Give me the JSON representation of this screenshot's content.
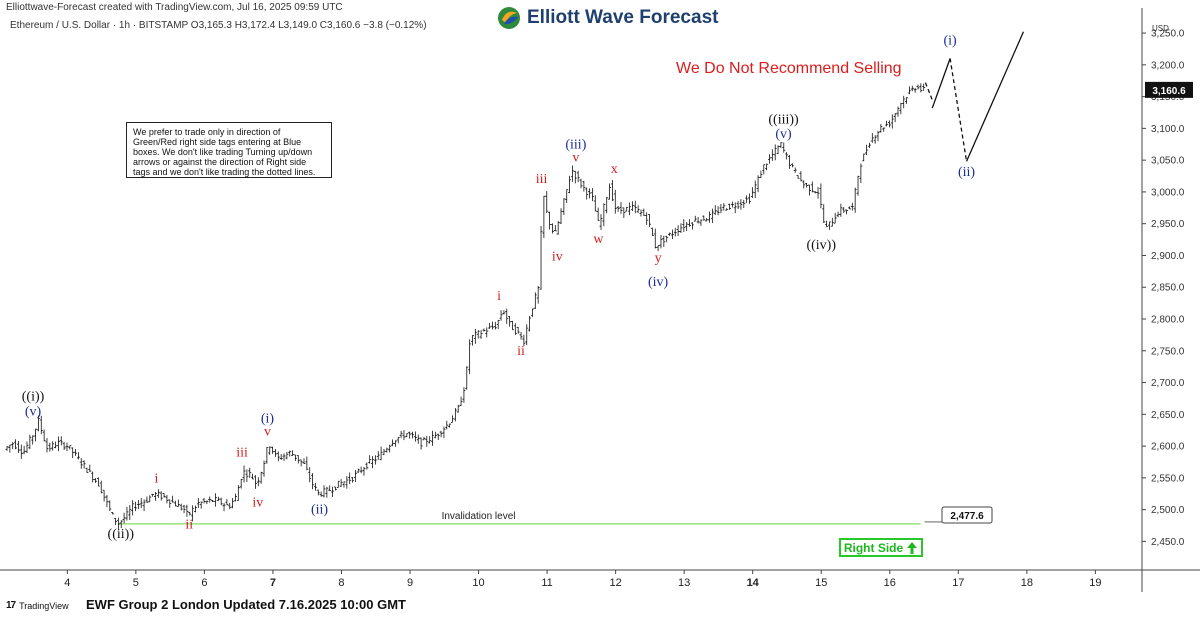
{
  "header": {
    "created_by": "Elliottwave-Forecast created with TradingView.com, Jul 16, 2025 09:59 UTC",
    "symbol_info": "Ethereum / U.S. Dollar · 1h · BITSTAMP  O3,165.3  H3,172.4  L3,149.0  C3,160.6  −3.8 (−0.12%)",
    "brand": "Elliott Wave Forecast",
    "currency": "USD"
  },
  "note": "We prefer to trade only in direction of Green/Red right side tags entering at Blue boxes. We don't like trading Turning up/down arrows or against the direction of Right side tags and we don't like trading the dotted lines.",
  "headline": "We Do Not Recommend Selling",
  "footer": {
    "tv_logo": "TradingView",
    "text": "EWF Group 2 London Updated 7.16.2025 10:00 GMT"
  },
  "right_side": "Right Side",
  "colors": {
    "candle": "#111111",
    "label_blue": "#1a2a9c",
    "label_red": "#d81e1e",
    "label_black": "#111111",
    "invalidation_line": "#9be07a",
    "right_side": "#28c828",
    "headline": "#d81e1e"
  },
  "chart_data": {
    "type": "candlestick",
    "title": "Ethereum / U.S. Dollar · 1h · BITSTAMP",
    "x_axis": {
      "unit": "day (July 2025)",
      "ticks": [
        {
          "x": 4,
          "label": "4",
          "bold": false
        },
        {
          "x": 5,
          "label": "5",
          "bold": false
        },
        {
          "x": 6,
          "label": "6",
          "bold": false
        },
        {
          "x": 7,
          "label": "7",
          "bold": true
        },
        {
          "x": 8,
          "label": "8",
          "bold": false
        },
        {
          "x": 9,
          "label": "9",
          "bold": false
        },
        {
          "x": 10,
          "label": "10",
          "bold": false
        },
        {
          "x": 11,
          "label": "11",
          "bold": false
        },
        {
          "x": 12,
          "label": "12",
          "bold": false
        },
        {
          "x": 13,
          "label": "13",
          "bold": false
        },
        {
          "x": 14,
          "label": "14",
          "bold": true
        },
        {
          "x": 15,
          "label": "15",
          "bold": false
        },
        {
          "x": 16,
          "label": "16",
          "bold": false
        },
        {
          "x": 17,
          "label": "17",
          "bold": false
        },
        {
          "x": 18,
          "label": "18",
          "bold": false
        },
        {
          "x": 19,
          "label": "19",
          "bold": false
        }
      ],
      "range": [
        3.12,
        19.68
      ]
    },
    "y_axis": {
      "unit": "USD",
      "range": [
        2405,
        3280
      ],
      "ticks": [
        {
          "v": 2450,
          "label": "2,450.0"
        },
        {
          "v": 2500,
          "label": "2,500.0"
        },
        {
          "v": 2550,
          "label": "2,550.0"
        },
        {
          "v": 2600,
          "label": "2,600.0"
        },
        {
          "v": 2650,
          "label": "2,650.0"
        },
        {
          "v": 2700,
          "label": "2,700.0"
        },
        {
          "v": 2750,
          "label": "2,750.0"
        },
        {
          "v": 2800,
          "label": "2,800.0"
        },
        {
          "v": 2850,
          "label": "2,850.0"
        },
        {
          "v": 2900,
          "label": "2,900.0"
        },
        {
          "v": 2950,
          "label": "2,950.0"
        },
        {
          "v": 3000,
          "label": "3,000.0"
        },
        {
          "v": 3050,
          "label": "3,050.0"
        },
        {
          "v": 3100,
          "label": "3,100.0"
        },
        {
          "v": 3150,
          "label": "3,150.0"
        },
        {
          "v": 3200,
          "label": "3,200.0"
        },
        {
          "v": 3250,
          "label": "3,250.0"
        }
      ]
    },
    "price_path": [
      [
        3.12,
        2595
      ],
      [
        3.25,
        2605
      ],
      [
        3.4,
        2590
      ],
      [
        3.55,
        2620
      ],
      [
        3.62,
        2640
      ],
      [
        3.75,
        2595
      ],
      [
        3.9,
        2605
      ],
      [
        4.05,
        2600
      ],
      [
        4.2,
        2580
      ],
      [
        4.35,
        2560
      ],
      [
        4.5,
        2540
      ],
      [
        4.6,
        2515
      ],
      [
        4.7,
        2490
      ],
      [
        4.78,
        2478
      ],
      [
        4.9,
        2490
      ],
      [
        5.0,
        2505
      ],
      [
        5.2,
        2515
      ],
      [
        5.3,
        2525
      ],
      [
        5.45,
        2520
      ],
      [
        5.6,
        2510
      ],
      [
        5.75,
        2500
      ],
      [
        5.8,
        2490
      ],
      [
        5.95,
        2510
      ],
      [
        6.2,
        2515
      ],
      [
        6.4,
        2505
      ],
      [
        6.5,
        2520
      ],
      [
        6.6,
        2560
      ],
      [
        6.72,
        2555
      ],
      [
        6.8,
        2540
      ],
      [
        6.9,
        2570
      ],
      [
        6.98,
        2605
      ],
      [
        7.1,
        2580
      ],
      [
        7.3,
        2590
      ],
      [
        7.5,
        2570
      ],
      [
        7.62,
        2540
      ],
      [
        7.7,
        2525
      ],
      [
        7.85,
        2530
      ],
      [
        8.0,
        2540
      ],
      [
        8.2,
        2550
      ],
      [
        8.4,
        2570
      ],
      [
        8.6,
        2585
      ],
      [
        8.8,
        2610
      ],
      [
        9.0,
        2620
      ],
      [
        9.2,
        2605
      ],
      [
        9.4,
        2615
      ],
      [
        9.6,
        2635
      ],
      [
        9.75,
        2660
      ],
      [
        9.85,
        2700
      ],
      [
        9.92,
        2770
      ],
      [
        10.1,
        2780
      ],
      [
        10.3,
        2790
      ],
      [
        10.4,
        2815
      ],
      [
        10.5,
        2790
      ],
      [
        10.6,
        2780
      ],
      [
        10.7,
        2765
      ],
      [
        10.8,
        2810
      ],
      [
        10.92,
        2850
      ],
      [
        10.98,
        3000
      ],
      [
        11.05,
        2960
      ],
      [
        11.15,
        2930
      ],
      [
        11.3,
        2990
      ],
      [
        11.4,
        3035
      ],
      [
        11.55,
        3010
      ],
      [
        11.7,
        2990
      ],
      [
        11.8,
        2945
      ],
      [
        11.95,
        3010
      ],
      [
        12.05,
        2970
      ],
      [
        12.3,
        2975
      ],
      [
        12.5,
        2960
      ],
      [
        12.62,
        2915
      ],
      [
        12.8,
        2930
      ],
      [
        13.0,
        2945
      ],
      [
        13.2,
        2955
      ],
      [
        13.4,
        2960
      ],
      [
        13.6,
        2975
      ],
      [
        13.8,
        2980
      ],
      [
        14.0,
        2990
      ],
      [
        14.2,
        3040
      ],
      [
        14.45,
        3075
      ],
      [
        14.6,
        3040
      ],
      [
        14.8,
        3010
      ],
      [
        15.0,
        3000
      ],
      [
        15.1,
        2940
      ],
      [
        15.3,
        2970
      ],
      [
        15.5,
        2975
      ],
      [
        15.6,
        3040
      ],
      [
        15.75,
        3080
      ],
      [
        15.9,
        3100
      ],
      [
        16.05,
        3110
      ],
      [
        16.2,
        3140
      ],
      [
        16.35,
        3160
      ],
      [
        16.45,
        3168
      ],
      [
        16.5,
        3160
      ]
    ],
    "projection": [
      {
        "from": [
          16.52,
          3172
        ],
        "to": [
          16.62,
          3145
        ],
        "style": "dashed"
      },
      {
        "from": [
          16.62,
          3132
        ],
        "to": [
          16.88,
          3210
        ],
        "style": "solid"
      },
      {
        "from": [
          16.88,
          3210
        ],
        "to": [
          17.12,
          3048
        ],
        "style": "dashed"
      },
      {
        "from": [
          17.12,
          3048
        ],
        "to": [
          17.95,
          3252
        ],
        "style": "solid"
      }
    ],
    "wave_labels": [
      {
        "text": "((i))",
        "x": 3.5,
        "y": 2672,
        "color": "black"
      },
      {
        "text": "(v)",
        "x": 3.5,
        "y": 2648,
        "color": "blue"
      },
      {
        "text": "((ii))",
        "x": 4.78,
        "y": 2455,
        "color": "black"
      },
      {
        "text": "i",
        "x": 5.3,
        "y": 2543,
        "color": "red"
      },
      {
        "text": "ii",
        "x": 5.78,
        "y": 2470,
        "color": "red"
      },
      {
        "text": "iii",
        "x": 6.55,
        "y": 2584,
        "color": "red"
      },
      {
        "text": "iv",
        "x": 6.78,
        "y": 2505,
        "color": "red"
      },
      {
        "text": "(i)",
        "x": 6.92,
        "y": 2637,
        "color": "blue"
      },
      {
        "text": "v",
        "x": 6.92,
        "y": 2617,
        "color": "red"
      },
      {
        "text": "(ii)",
        "x": 7.68,
        "y": 2494,
        "color": "blue"
      },
      {
        "text": "i",
        "x": 10.3,
        "y": 2830,
        "color": "red"
      },
      {
        "text": "ii",
        "x": 10.62,
        "y": 2743,
        "color": "red"
      },
      {
        "text": "iii",
        "x": 10.92,
        "y": 3014,
        "color": "red"
      },
      {
        "text": "iv",
        "x": 11.15,
        "y": 2892,
        "color": "red"
      },
      {
        "text": "(iii)",
        "x": 11.42,
        "y": 3068,
        "color": "blue"
      },
      {
        "text": "v",
        "x": 11.42,
        "y": 3048,
        "color": "red"
      },
      {
        "text": "w",
        "x": 11.75,
        "y": 2920,
        "color": "red"
      },
      {
        "text": "x",
        "x": 11.98,
        "y": 3030,
        "color": "red"
      },
      {
        "text": "y",
        "x": 12.62,
        "y": 2890,
        "color": "red"
      },
      {
        "text": "(iv)",
        "x": 12.62,
        "y": 2852,
        "color": "blue"
      },
      {
        "text": "((iii))",
        "x": 14.45,
        "y": 3108,
        "color": "black"
      },
      {
        "text": "(v)",
        "x": 14.45,
        "y": 3085,
        "color": "blue"
      },
      {
        "text": "((iv))",
        "x": 15.0,
        "y": 2910,
        "color": "black"
      },
      {
        "text": "(i)",
        "x": 16.88,
        "y": 3232,
        "color": "blue"
      },
      {
        "text": "(ii)",
        "x": 17.12,
        "y": 3025,
        "color": "blue"
      }
    ],
    "invalidation": {
      "level": 2477.6,
      "label": "Invalidation level",
      "value_label": "2,477.6",
      "from_x": 4.75,
      "to_x": 16.45
    },
    "last_price": {
      "value": 3160.6,
      "label": "3,160.6"
    }
  }
}
